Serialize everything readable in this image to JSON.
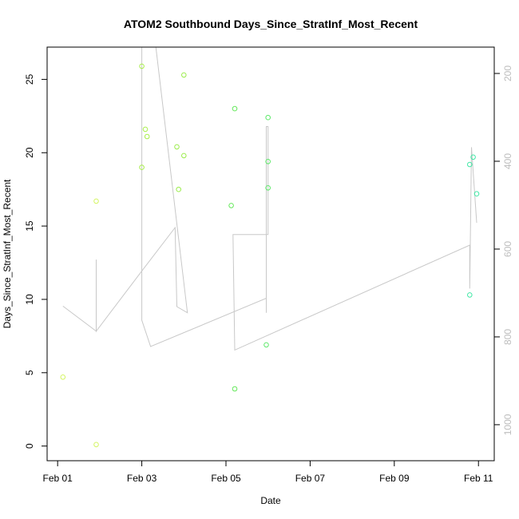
{
  "chart_data": {
    "type": "scatter",
    "title": "ATOM2 Southbound Days_Since_StratInf_Most_Recent",
    "xlabel": "Date",
    "ylabel": "Days_Since_StratInf_Most_Recent",
    "grid": false,
    "x_ticks": [
      "Feb 01",
      "Feb 03",
      "Feb 05",
      "Feb 07",
      "Feb 09",
      "Feb 11"
    ],
    "y_ticks": [
      "0",
      "5",
      "10",
      "15",
      "20",
      "25"
    ],
    "y_right_ticks": [
      "200",
      "400",
      "600",
      "800",
      "1000"
    ],
    "xlim": [
      "2023-01-31T18:00",
      "2023-02-11T09:00"
    ],
    "ylim": [
      -1,
      27.2
    ],
    "y_right_lim": [
      1082,
      140
    ],
    "points": [
      {
        "x": "2023-02-01T03:00",
        "y": 4.7,
        "color": "#d4f562"
      },
      {
        "x": "2023-02-01T22:00",
        "y": 16.7,
        "color": "#d4f562"
      },
      {
        "x": "2023-02-01T22:00",
        "y": 0.1,
        "color": "#d4f562"
      },
      {
        "x": "2023-02-03T00:00",
        "y": 25.9,
        "color": "#a8ee4a"
      },
      {
        "x": "2023-02-03T00:00",
        "y": 19.0,
        "color": "#a8ee4a"
      },
      {
        "x": "2023-02-03T02:00",
        "y": 21.6,
        "color": "#a8ee4a"
      },
      {
        "x": "2023-02-03T03:00",
        "y": 21.1,
        "color": "#a8ee4a"
      },
      {
        "x": "2023-02-03T20:00",
        "y": 20.4,
        "color": "#9aec4a"
      },
      {
        "x": "2023-02-03T21:00",
        "y": 17.5,
        "color": "#9aec4a"
      },
      {
        "x": "2023-02-04T00:00",
        "y": 25.3,
        "color": "#9aec4a"
      },
      {
        "x": "2023-02-04T00:00",
        "y": 19.8,
        "color": "#9aec4a"
      },
      {
        "x": "2023-02-05T03:00",
        "y": 16.4,
        "color": "#64e85a"
      },
      {
        "x": "2023-02-05T05:00",
        "y": 23.0,
        "color": "#64e85a"
      },
      {
        "x": "2023-02-05T05:00",
        "y": 3.9,
        "color": "#64e85a"
      },
      {
        "x": "2023-02-05T23:00",
        "y": 6.9,
        "color": "#5ee86a"
      },
      {
        "x": "2023-02-06T00:00",
        "y": 22.4,
        "color": "#5ee86a"
      },
      {
        "x": "2023-02-06T00:00",
        "y": 19.4,
        "color": "#5ee86a"
      },
      {
        "x": "2023-02-06T00:00",
        "y": 17.6,
        "color": "#5ee86a"
      },
      {
        "x": "2023-02-10T19:00",
        "y": 19.2,
        "color": "#40e8a6"
      },
      {
        "x": "2023-02-10T19:00",
        "y": 10.3,
        "color": "#40e8a6"
      },
      {
        "x": "2023-02-10T21:00",
        "y": 19.7,
        "color": "#40e8a6"
      },
      {
        "x": "2023-02-10T23:00",
        "y": 17.2,
        "color": "#40e8a6"
      }
    ],
    "secondary_line": {
      "axis": "right",
      "color": "#c8c8c8",
      "points": [
        {
          "x": "2023-02-01T03:00",
          "y": 730
        },
        {
          "x": "2023-02-01T22:00",
          "y": 787
        },
        {
          "x": "2023-02-01T22:00",
          "y": 624
        },
        {
          "x": "2023-02-01T22:00",
          "y": 787
        },
        {
          "x": "2023-02-03T00:00",
          "y": 650
        },
        {
          "x": "2023-02-03T19:00",
          "y": 551
        },
        {
          "x": "2023-02-03T20:00",
          "y": 731
        },
        {
          "x": "2023-02-04T02:00",
          "y": 745
        },
        {
          "x": "2023-02-04T01:00",
          "y": 711
        },
        {
          "x": "2023-02-03T08:00",
          "y": 140
        },
        {
          "x": "2023-02-03T00:00",
          "y": 140
        },
        {
          "x": "2023-02-03T00:00",
          "y": 762
        },
        {
          "x": "2023-02-03T05:00",
          "y": 822
        },
        {
          "x": "2023-02-05T23:00",
          "y": 712
        },
        {
          "x": "2023-02-05T23:00",
          "y": 745
        },
        {
          "x": "2023-02-05T23:00",
          "y": 321
        },
        {
          "x": "2023-02-06T00:00",
          "y": 321
        },
        {
          "x": "2023-02-06T00:00",
          "y": 567
        },
        {
          "x": "2023-02-05T04:00",
          "y": 567
        },
        {
          "x": "2023-02-05T05:00",
          "y": 830
        },
        {
          "x": "2023-02-10T19:00",
          "y": 591
        },
        {
          "x": "2023-02-10T19:00",
          "y": 690
        },
        {
          "x": "2023-02-10T20:00",
          "y": 368
        },
        {
          "x": "2023-02-10T23:00",
          "y": 540
        }
      ]
    }
  }
}
